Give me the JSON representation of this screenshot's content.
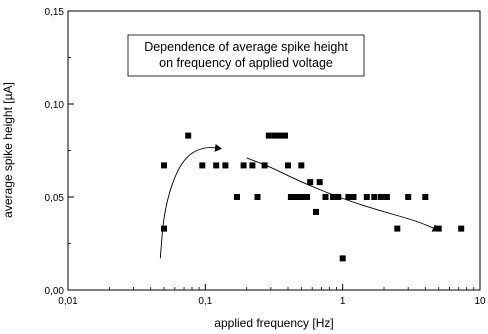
{
  "chart_data": {
    "type": "scatter",
    "title": "",
    "xlabel": "applied frequency [Hz]",
    "ylabel": "average spike height [µA]",
    "x_scale": "log",
    "xlim": [
      0.01,
      10
    ],
    "ylim": [
      0.0,
      0.15
    ],
    "x_ticks": [
      0.01,
      0.1,
      1,
      10
    ],
    "x_tick_labels": [
      "0,01",
      "0,1",
      "1",
      "10"
    ],
    "y_ticks": [
      0.0,
      0.05,
      0.1,
      0.15
    ],
    "y_tick_labels": [
      "0,00",
      "0,05",
      "0,10",
      "0,15"
    ],
    "grid": false,
    "annotation_lines": [
      "Dependence of average spike height",
      "on frequency of applied voltage"
    ],
    "points": [
      {
        "x": 0.05,
        "y": 0.033
      },
      {
        "x": 0.05,
        "y": 0.067
      },
      {
        "x": 0.075,
        "y": 0.083
      },
      {
        "x": 0.095,
        "y": 0.067
      },
      {
        "x": 0.12,
        "y": 0.067
      },
      {
        "x": 0.14,
        "y": 0.067
      },
      {
        "x": 0.17,
        "y": 0.05
      },
      {
        "x": 0.19,
        "y": 0.067
      },
      {
        "x": 0.22,
        "y": 0.067
      },
      {
        "x": 0.24,
        "y": 0.05
      },
      {
        "x": 0.27,
        "y": 0.067
      },
      {
        "x": 0.29,
        "y": 0.083
      },
      {
        "x": 0.32,
        "y": 0.083
      },
      {
        "x": 0.35,
        "y": 0.083
      },
      {
        "x": 0.38,
        "y": 0.083
      },
      {
        "x": 0.4,
        "y": 0.067
      },
      {
        "x": 0.42,
        "y": 0.05
      },
      {
        "x": 0.46,
        "y": 0.05
      },
      {
        "x": 0.5,
        "y": 0.05
      },
      {
        "x": 0.55,
        "y": 0.05
      },
      {
        "x": 0.58,
        "y": 0.058
      },
      {
        "x": 0.5,
        "y": 0.067
      },
      {
        "x": 0.64,
        "y": 0.042
      },
      {
        "x": 0.68,
        "y": 0.058
      },
      {
        "x": 0.75,
        "y": 0.05
      },
      {
        "x": 0.85,
        "y": 0.05
      },
      {
        "x": 0.93,
        "y": 0.05
      },
      {
        "x": 1.0,
        "y": 0.017
      },
      {
        "x": 1.1,
        "y": 0.05
      },
      {
        "x": 1.2,
        "y": 0.05
      },
      {
        "x": 1.5,
        "y": 0.05
      },
      {
        "x": 1.7,
        "y": 0.05
      },
      {
        "x": 1.9,
        "y": 0.05
      },
      {
        "x": 2.1,
        "y": 0.05
      },
      {
        "x": 2.5,
        "y": 0.033
      },
      {
        "x": 3.0,
        "y": 0.05
      },
      {
        "x": 4.0,
        "y": 0.05
      },
      {
        "x": 5.0,
        "y": 0.033
      },
      {
        "x": 7.3,
        "y": 0.033
      }
    ],
    "trend_curve": [
      {
        "x": 0.047,
        "y": 0.017
      },
      {
        "x": 0.05,
        "y": 0.042
      },
      {
        "x": 0.06,
        "y": 0.062
      },
      {
        "x": 0.075,
        "y": 0.073
      },
      {
        "x": 0.1,
        "y": 0.077
      },
      {
        "x": 0.13,
        "y": 0.076
      },
      {
        "x": 0.2,
        "y": 0.071
      },
      {
        "x": 0.3,
        "y": 0.066
      },
      {
        "x": 0.5,
        "y": 0.058
      },
      {
        "x": 1.0,
        "y": 0.049
      },
      {
        "x": 2.0,
        "y": 0.042
      },
      {
        "x": 3.5,
        "y": 0.037
      },
      {
        "x": 5.0,
        "y": 0.032
      }
    ],
    "trend_arrow_index": 6
  }
}
